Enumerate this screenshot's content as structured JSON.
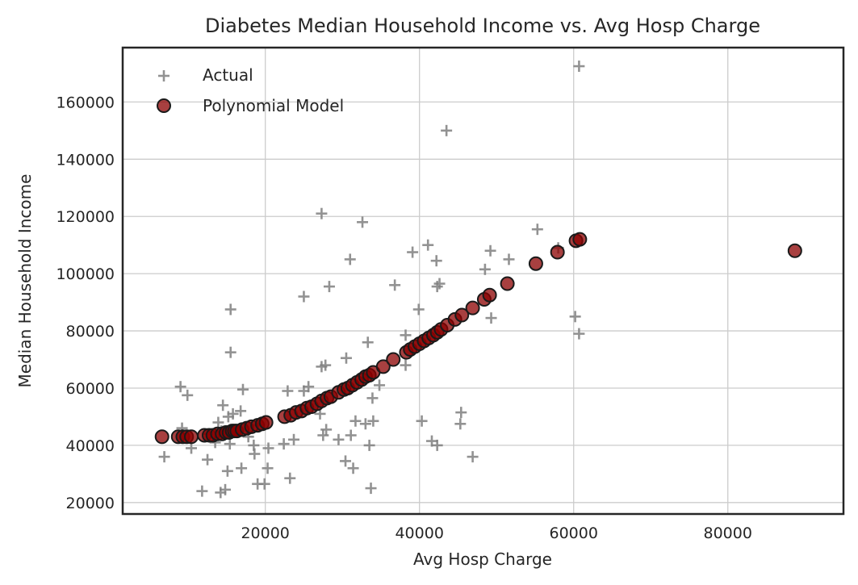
{
  "chart_data": {
    "type": "scatter",
    "title": "Diabetes Median Household Income vs. Avg Hosp Charge",
    "xlabel": "Avg Hosp Charge",
    "ylabel": "Median Household Income",
    "xlim": [
      1500,
      95000
    ],
    "ylim": [
      16000,
      179000
    ],
    "xticks": [
      20000,
      40000,
      60000,
      80000
    ],
    "yticks": [
      20000,
      40000,
      60000,
      80000,
      100000,
      120000,
      140000,
      160000
    ],
    "grid": true,
    "legend_position": "top-left",
    "series": [
      {
        "name": "Actual",
        "marker": "plus",
        "color": "#808080",
        "points": [
          [
            60700,
            172500
          ],
          [
            43500,
            150000
          ],
          [
            27300,
            121000
          ],
          [
            32600,
            118000
          ],
          [
            55300,
            115500
          ],
          [
            41100,
            110000
          ],
          [
            58000,
            109000
          ],
          [
            49200,
            108000
          ],
          [
            39100,
            107500
          ],
          [
            31000,
            105000
          ],
          [
            42200,
            104500
          ],
          [
            51600,
            105000
          ],
          [
            48500,
            101500
          ],
          [
            42600,
            96500
          ],
          [
            42300,
            95500
          ],
          [
            36800,
            96000
          ],
          [
            28300,
            95500
          ],
          [
            25000,
            92000
          ],
          [
            15500,
            87500
          ],
          [
            39900,
            87500
          ],
          [
            60200,
            85000
          ],
          [
            49300,
            84500
          ],
          [
            60700,
            79000
          ],
          [
            38200,
            78500
          ],
          [
            33300,
            76000
          ],
          [
            15500,
            72500
          ],
          [
            30500,
            70500
          ],
          [
            27800,
            68000
          ],
          [
            38200,
            68000
          ],
          [
            27300,
            67500
          ],
          [
            34800,
            61000
          ],
          [
            25600,
            60500
          ],
          [
            9000,
            60500
          ],
          [
            17100,
            59500
          ],
          [
            22900,
            59000
          ],
          [
            25000,
            59000
          ],
          [
            9900,
            57500
          ],
          [
            33900,
            56500
          ],
          [
            14500,
            54000
          ],
          [
            16800,
            52000
          ],
          [
            15800,
            51000
          ],
          [
            45400,
            51500
          ],
          [
            27100,
            51000
          ],
          [
            15200,
            50000
          ],
          [
            31700,
            48500
          ],
          [
            40300,
            48500
          ],
          [
            34000,
            48500
          ],
          [
            13900,
            48000
          ],
          [
            45300,
            47500
          ],
          [
            33000,
            47500
          ],
          [
            19100,
            47000
          ],
          [
            9200,
            46000
          ],
          [
            27900,
            45500
          ],
          [
            14300,
            45000
          ],
          [
            29500,
            42000
          ],
          [
            12500,
            44000
          ],
          [
            17800,
            43000
          ],
          [
            27500,
            43500
          ],
          [
            31100,
            43500
          ],
          [
            23700,
            42000
          ],
          [
            13500,
            41000
          ],
          [
            22400,
            40500
          ],
          [
            18500,
            40000
          ],
          [
            15400,
            40500
          ],
          [
            33500,
            40000
          ],
          [
            41600,
            41500
          ],
          [
            42300,
            40000
          ],
          [
            10400,
            39000
          ],
          [
            20400,
            39000
          ],
          [
            18600,
            37000
          ],
          [
            6900,
            36000
          ],
          [
            46900,
            36000
          ],
          [
            12500,
            35000
          ],
          [
            30400,
            34500
          ],
          [
            31400,
            32000
          ],
          [
            16900,
            32000
          ],
          [
            20300,
            32000
          ],
          [
            15100,
            31000
          ],
          [
            23200,
            28500
          ],
          [
            19000,
            26500
          ],
          [
            19900,
            26500
          ],
          [
            33700,
            25000
          ],
          [
            11800,
            24000
          ],
          [
            14800,
            24500
          ],
          [
            14200,
            23500
          ]
        ]
      },
      {
        "name": "Polynomial Model",
        "marker": "circle",
        "color": "#8b0000",
        "points": [
          [
            6600,
            43000
          ],
          [
            8700,
            43000
          ],
          [
            9300,
            43000
          ],
          [
            9800,
            43000
          ],
          [
            10400,
            43000
          ],
          [
            12100,
            43500
          ],
          [
            12700,
            43500
          ],
          [
            13200,
            43500
          ],
          [
            13800,
            44000
          ],
          [
            14400,
            44000
          ],
          [
            14900,
            44500
          ],
          [
            15300,
            44500
          ],
          [
            15700,
            45000
          ],
          [
            16000,
            45000
          ],
          [
            16300,
            45000
          ],
          [
            17000,
            45500
          ],
          [
            17600,
            46000
          ],
          [
            18200,
            46500
          ],
          [
            19000,
            47000
          ],
          [
            19600,
            47500
          ],
          [
            20100,
            48000
          ],
          [
            22500,
            50000
          ],
          [
            23300,
            50500
          ],
          [
            24000,
            51500
          ],
          [
            24700,
            52000
          ],
          [
            25400,
            53000
          ],
          [
            26000,
            53500
          ],
          [
            26700,
            54500
          ],
          [
            27300,
            55500
          ],
          [
            28000,
            56500
          ],
          [
            28500,
            57000
          ],
          [
            29500,
            58500
          ],
          [
            30200,
            59500
          ],
          [
            30700,
            60000
          ],
          [
            31300,
            61000
          ],
          [
            31900,
            62000
          ],
          [
            32500,
            63000
          ],
          [
            33000,
            64000
          ],
          [
            33500,
            64500
          ],
          [
            34000,
            65500
          ],
          [
            35300,
            67500
          ],
          [
            36600,
            70000
          ],
          [
            38300,
            72500
          ],
          [
            38800,
            73500
          ],
          [
            39400,
            74500
          ],
          [
            40000,
            75500
          ],
          [
            40600,
            76500
          ],
          [
            41200,
            77500
          ],
          [
            41800,
            78500
          ],
          [
            42300,
            79500
          ],
          [
            42800,
            80500
          ],
          [
            43600,
            82000
          ],
          [
            44600,
            84000
          ],
          [
            45500,
            85500
          ],
          [
            46900,
            88000
          ],
          [
            48400,
            91000
          ],
          [
            49100,
            92500
          ],
          [
            51400,
            96500
          ],
          [
            55100,
            103500
          ],
          [
            57900,
            107500
          ],
          [
            60300,
            111500
          ],
          [
            60800,
            112000
          ],
          [
            88700,
            108000
          ]
        ]
      }
    ]
  }
}
